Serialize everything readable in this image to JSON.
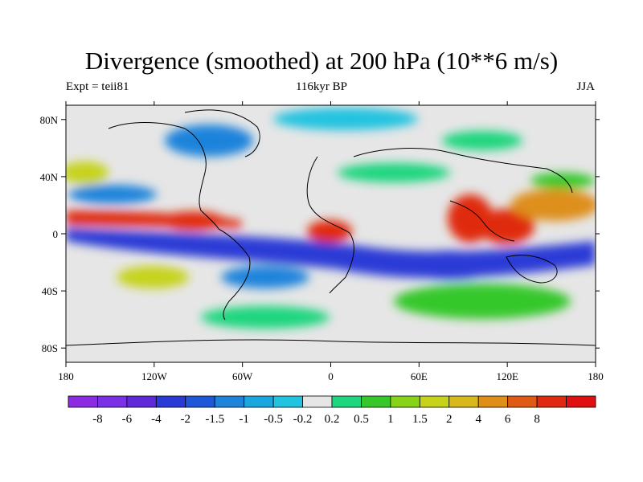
{
  "title": "Divergence (smoothed) at 200 hPa (10**6 m/s)",
  "left_subtitle": "Expt = teii81",
  "center_subtitle": "116kyr BP",
  "right_subtitle": "JJA",
  "map": {
    "lon_range": [
      -180,
      180
    ],
    "lat_range": [
      -90,
      90
    ],
    "x_ticks": [
      {
        "lon": -180,
        "label": "180"
      },
      {
        "lon": -120,
        "label": "120W"
      },
      {
        "lon": -60,
        "label": "60W"
      },
      {
        "lon": 0,
        "label": "0"
      },
      {
        "lon": 60,
        "label": "60E"
      },
      {
        "lon": 120,
        "label": "120E"
      },
      {
        "lon": 180,
        "label": "180"
      }
    ],
    "y_ticks": [
      {
        "lat": 80,
        "label": "80N"
      },
      {
        "lat": 40,
        "label": "40N"
      },
      {
        "lat": 0,
        "label": "0"
      },
      {
        "lat": -40,
        "label": "40S"
      },
      {
        "lat": -80,
        "label": "80S"
      }
    ]
  },
  "colorbar": {
    "colors": [
      "#8a2be2",
      "#7b2fe6",
      "#5f28d8",
      "#2a3ad6",
      "#1e58d8",
      "#1d83db",
      "#1aa6de",
      "#22c3e0",
      "#e6e6e6",
      "#1ed67e",
      "#36c82a",
      "#86d318",
      "#c6d31a",
      "#d9b81c",
      "#de8f1a",
      "#df5a14",
      "#e02a10",
      "#e01010"
    ],
    "labels": [
      "-8",
      "-6",
      "-4",
      "-2",
      "-1.5",
      "-1",
      "-0.5",
      "-0.2",
      "0.2",
      "0.5",
      "1",
      "1.5",
      "2",
      "4",
      "6",
      "8"
    ]
  },
  "field_colors": {
    "neutral": "#e6e6e6",
    "strong_neg": "#2a3ad6",
    "mid_neg": "#1d83db",
    "weak_neg": "#22c3e0",
    "weak_pos": "#1ed67e",
    "mid_pos": "#36c82a",
    "pos_yellow": "#c6d31a",
    "pos_orange": "#de8f1a",
    "strong_pos": "#e02a10"
  }
}
